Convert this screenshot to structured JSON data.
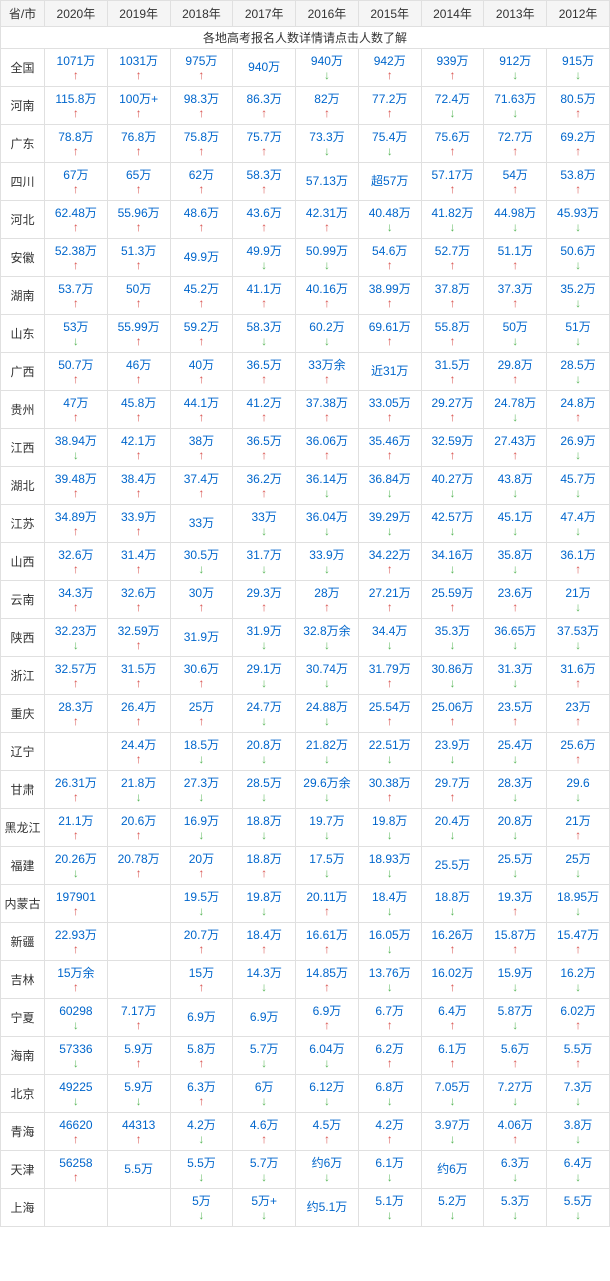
{
  "subtitle": "各地高考报名人数详情请点击人数了解",
  "years": [
    "2020年",
    "2019年",
    "2018年",
    "2017年",
    "2016年",
    "2015年",
    "2014年",
    "2013年",
    "2012年"
  ],
  "first_col": "省/市",
  "link_color": "#0066cc",
  "up_color": "#d9534f",
  "down_color": "#5cb85c",
  "border_color": "#e0e0e0",
  "header_bg": "#f5f5f5",
  "rows": [
    {
      "p": "全国",
      "c": [
        {
          "v": "1071万",
          "a": "u"
        },
        {
          "v": "1031万",
          "a": "u"
        },
        {
          "v": "975万",
          "a": "u"
        },
        {
          "v": "940万",
          "a": ""
        },
        {
          "v": "940万",
          "a": "d"
        },
        {
          "v": "942万",
          "a": "u"
        },
        {
          "v": "939万",
          "a": "u"
        },
        {
          "v": "912万",
          "a": "d"
        },
        {
          "v": "915万",
          "a": "d"
        }
      ]
    },
    {
      "p": "河南",
      "c": [
        {
          "v": "115.8万",
          "a": "u"
        },
        {
          "v": "100万+",
          "a": "u"
        },
        {
          "v": "98.3万",
          "a": "u"
        },
        {
          "v": "86.3万",
          "a": "u"
        },
        {
          "v": "82万",
          "a": "u"
        },
        {
          "v": "77.2万",
          "a": "u"
        },
        {
          "v": "72.4万",
          "a": "d"
        },
        {
          "v": "71.63万",
          "a": "d"
        },
        {
          "v": "80.5万",
          "a": "u"
        }
      ]
    },
    {
      "p": "广东",
      "c": [
        {
          "v": "78.8万",
          "a": "u"
        },
        {
          "v": "76.8万",
          "a": "u"
        },
        {
          "v": "75.8万",
          "a": "u"
        },
        {
          "v": "75.7万",
          "a": "u"
        },
        {
          "v": "73.3万",
          "a": "d"
        },
        {
          "v": "75.4万",
          "a": "d"
        },
        {
          "v": "75.6万",
          "a": "u"
        },
        {
          "v": "72.7万",
          "a": "u"
        },
        {
          "v": "69.2万",
          "a": "u"
        }
      ]
    },
    {
      "p": "四川",
      "c": [
        {
          "v": "67万",
          "a": "u"
        },
        {
          "v": "65万",
          "a": "u"
        },
        {
          "v": "62万",
          "a": "u"
        },
        {
          "v": "58.3万",
          "a": "u"
        },
        {
          "v": "57.13万",
          "a": ""
        },
        {
          "v": "超57万",
          "a": ""
        },
        {
          "v": "57.17万",
          "a": "u"
        },
        {
          "v": "54万",
          "a": "u"
        },
        {
          "v": "53.8万",
          "a": "u"
        }
      ]
    },
    {
      "p": "河北",
      "c": [
        {
          "v": "62.48万",
          "a": "u"
        },
        {
          "v": "55.96万",
          "a": "u"
        },
        {
          "v": "48.6万",
          "a": "u"
        },
        {
          "v": "43.6万",
          "a": "u"
        },
        {
          "v": "42.31万",
          "a": "u"
        },
        {
          "v": "40.48万",
          "a": "d"
        },
        {
          "v": "41.82万",
          "a": "d"
        },
        {
          "v": "44.98万",
          "a": "d"
        },
        {
          "v": "45.93万",
          "a": "d"
        }
      ]
    },
    {
      "p": "安徽",
      "c": [
        {
          "v": "52.38万",
          "a": "u"
        },
        {
          "v": "51.3万",
          "a": "u"
        },
        {
          "v": "49.9万",
          "a": ""
        },
        {
          "v": "49.9万",
          "a": "d"
        },
        {
          "v": "50.99万",
          "a": "d"
        },
        {
          "v": "54.6万",
          "a": "u"
        },
        {
          "v": "52.7万",
          "a": "u"
        },
        {
          "v": "51.1万",
          "a": "u"
        },
        {
          "v": "50.6万",
          "a": "d"
        }
      ]
    },
    {
      "p": "湖南",
      "c": [
        {
          "v": "53.7万",
          "a": "u"
        },
        {
          "v": "50万",
          "a": "u"
        },
        {
          "v": "45.2万",
          "a": "u"
        },
        {
          "v": "41.1万",
          "a": "u"
        },
        {
          "v": "40.16万",
          "a": "u"
        },
        {
          "v": "38.99万",
          "a": "u"
        },
        {
          "v": "37.8万",
          "a": "u"
        },
        {
          "v": "37.3万",
          "a": "u"
        },
        {
          "v": "35.2万",
          "a": "d"
        }
      ]
    },
    {
      "p": "山东",
      "c": [
        {
          "v": "53万",
          "a": "d"
        },
        {
          "v": "55.99万",
          "a": "u"
        },
        {
          "v": "59.2万",
          "a": "u"
        },
        {
          "v": "58.3万",
          "a": "d"
        },
        {
          "v": "60.2万",
          "a": "d"
        },
        {
          "v": "69.61万",
          "a": "u"
        },
        {
          "v": "55.8万",
          "a": "u"
        },
        {
          "v": "50万",
          "a": "d"
        },
        {
          "v": "51万",
          "a": "d"
        }
      ]
    },
    {
      "p": "广西",
      "c": [
        {
          "v": "50.7万",
          "a": "u"
        },
        {
          "v": "46万",
          "a": "u"
        },
        {
          "v": "40万",
          "a": "u"
        },
        {
          "v": "36.5万",
          "a": "u"
        },
        {
          "v": "33万余",
          "a": "u"
        },
        {
          "v": "近31万",
          "a": ""
        },
        {
          "v": "31.5万",
          "a": "u"
        },
        {
          "v": "29.8万",
          "a": "u"
        },
        {
          "v": "28.5万",
          "a": "d"
        }
      ]
    },
    {
      "p": "贵州",
      "c": [
        {
          "v": "47万",
          "a": "u"
        },
        {
          "v": "45.8万",
          "a": "u"
        },
        {
          "v": "44.1万",
          "a": "u"
        },
        {
          "v": "41.2万",
          "a": "u"
        },
        {
          "v": "37.38万",
          "a": "u"
        },
        {
          "v": "33.05万",
          "a": "u"
        },
        {
          "v": "29.27万",
          "a": "u"
        },
        {
          "v": "24.78万",
          "a": "d"
        },
        {
          "v": "24.8万",
          "a": "u"
        }
      ]
    },
    {
      "p": "江西",
      "c": [
        {
          "v": "38.94万",
          "a": "d"
        },
        {
          "v": "42.1万",
          "a": "u"
        },
        {
          "v": "38万",
          "a": "u"
        },
        {
          "v": "36.5万",
          "a": "u"
        },
        {
          "v": "36.06万",
          "a": "u"
        },
        {
          "v": "35.46万",
          "a": "u"
        },
        {
          "v": "32.59万",
          "a": "u"
        },
        {
          "v": "27.43万",
          "a": "u"
        },
        {
          "v": "26.9万",
          "a": "d"
        }
      ]
    },
    {
      "p": "湖北",
      "c": [
        {
          "v": "39.48万",
          "a": "u"
        },
        {
          "v": "38.4万",
          "a": "u"
        },
        {
          "v": "37.4万",
          "a": "u"
        },
        {
          "v": "36.2万",
          "a": "u"
        },
        {
          "v": "36.14万",
          "a": "d"
        },
        {
          "v": "36.84万",
          "a": "d"
        },
        {
          "v": "40.27万",
          "a": "d"
        },
        {
          "v": "43.8万",
          "a": "d"
        },
        {
          "v": "45.7万",
          "a": "d"
        }
      ]
    },
    {
      "p": "江苏",
      "c": [
        {
          "v": "34.89万",
          "a": "u"
        },
        {
          "v": "33.9万",
          "a": "u"
        },
        {
          "v": "33万",
          "a": ""
        },
        {
          "v": "33万",
          "a": "d"
        },
        {
          "v": "36.04万",
          "a": "d"
        },
        {
          "v": "39.29万",
          "a": "d"
        },
        {
          "v": "42.57万",
          "a": "d"
        },
        {
          "v": "45.1万",
          "a": "d"
        },
        {
          "v": "47.4万",
          "a": "d"
        }
      ]
    },
    {
      "p": "山西",
      "c": [
        {
          "v": "32.6万",
          "a": "u"
        },
        {
          "v": "31.4万",
          "a": "u"
        },
        {
          "v": "30.5万",
          "a": "d"
        },
        {
          "v": "31.7万",
          "a": "d"
        },
        {
          "v": "33.9万",
          "a": "d"
        },
        {
          "v": "34.22万",
          "a": "u"
        },
        {
          "v": "34.16万",
          "a": "d"
        },
        {
          "v": "35.8万",
          "a": "d"
        },
        {
          "v": "36.1万",
          "a": "u"
        }
      ]
    },
    {
      "p": "云南",
      "c": [
        {
          "v": "34.3万",
          "a": "u"
        },
        {
          "v": "32.6万",
          "a": "u"
        },
        {
          "v": "30万",
          "a": "u"
        },
        {
          "v": "29.3万",
          "a": "u"
        },
        {
          "v": "28万",
          "a": "u"
        },
        {
          "v": "27.21万",
          "a": "u"
        },
        {
          "v": "25.59万",
          "a": "u"
        },
        {
          "v": "23.6万",
          "a": "u"
        },
        {
          "v": "21万",
          "a": "d"
        }
      ]
    },
    {
      "p": "陕西",
      "c": [
        {
          "v": "32.23万",
          "a": "d"
        },
        {
          "v": "32.59万",
          "a": "u"
        },
        {
          "v": "31.9万",
          "a": ""
        },
        {
          "v": "31.9万",
          "a": "d"
        },
        {
          "v": "32.8万余",
          "a": "d"
        },
        {
          "v": "34.4万",
          "a": "d"
        },
        {
          "v": "35.3万",
          "a": "d"
        },
        {
          "v": "36.65万",
          "a": "d"
        },
        {
          "v": "37.53万",
          "a": "d"
        }
      ]
    },
    {
      "p": "浙江",
      "c": [
        {
          "v": "32.57万",
          "a": "u"
        },
        {
          "v": "31.5万",
          "a": "u"
        },
        {
          "v": "30.6万",
          "a": "u"
        },
        {
          "v": "29.1万",
          "a": "d"
        },
        {
          "v": "30.74万",
          "a": "d"
        },
        {
          "v": "31.79万",
          "a": "u"
        },
        {
          "v": "30.86万",
          "a": "d"
        },
        {
          "v": "31.3万",
          "a": "d"
        },
        {
          "v": "31.6万",
          "a": "u"
        }
      ]
    },
    {
      "p": "重庆",
      "c": [
        {
          "v": "28.3万",
          "a": "u"
        },
        {
          "v": "26.4万",
          "a": "u"
        },
        {
          "v": "25万",
          "a": "u"
        },
        {
          "v": "24.7万",
          "a": "d"
        },
        {
          "v": "24.88万",
          "a": "d"
        },
        {
          "v": "25.54万",
          "a": "u"
        },
        {
          "v": "25.06万",
          "a": "u"
        },
        {
          "v": "23.5万",
          "a": "u"
        },
        {
          "v": "23万",
          "a": "u"
        }
      ]
    },
    {
      "p": "辽宁",
      "c": [
        {
          "v": "",
          "a": ""
        },
        {
          "v": "24.4万",
          "a": "u"
        },
        {
          "v": "18.5万",
          "a": "d"
        },
        {
          "v": "20.8万",
          "a": "d"
        },
        {
          "v": "21.82万",
          "a": "d"
        },
        {
          "v": "22.51万",
          "a": "d"
        },
        {
          "v": "23.9万",
          "a": "d"
        },
        {
          "v": "25.4万",
          "a": "d"
        },
        {
          "v": "25.6万",
          "a": "u"
        }
      ]
    },
    {
      "p": "甘肃",
      "c": [
        {
          "v": "26.31万",
          "a": "u"
        },
        {
          "v": "21.8万",
          "a": "d"
        },
        {
          "v": "27.3万",
          "a": "d"
        },
        {
          "v": "28.5万",
          "a": "d"
        },
        {
          "v": "29.6万余",
          "a": "d"
        },
        {
          "v": "30.38万",
          "a": "u"
        },
        {
          "v": "29.7万",
          "a": "u"
        },
        {
          "v": "28.3万",
          "a": "d"
        },
        {
          "v": "29.6",
          "a": "d"
        }
      ]
    },
    {
      "p": "黑龙江",
      "c": [
        {
          "v": "21.1万",
          "a": "u"
        },
        {
          "v": "20.6万",
          "a": "u"
        },
        {
          "v": "16.9万",
          "a": "d"
        },
        {
          "v": "18.8万",
          "a": "d"
        },
        {
          "v": "19.7万",
          "a": "d"
        },
        {
          "v": "19.8万",
          "a": "d"
        },
        {
          "v": "20.4万",
          "a": "d"
        },
        {
          "v": "20.8万",
          "a": "d"
        },
        {
          "v": "21万",
          "a": "u"
        }
      ]
    },
    {
      "p": "福建",
      "c": [
        {
          "v": "20.26万",
          "a": "d"
        },
        {
          "v": "20.78万",
          "a": "u"
        },
        {
          "v": "20万",
          "a": "u"
        },
        {
          "v": "18.8万",
          "a": "u"
        },
        {
          "v": "17.5万",
          "a": "d"
        },
        {
          "v": "18.93万",
          "a": "d"
        },
        {
          "v": "25.5万",
          "a": ""
        },
        {
          "v": "25.5万",
          "a": "d"
        },
        {
          "v": "25万",
          "a": "d"
        }
      ]
    },
    {
      "p": "内蒙古",
      "c": [
        {
          "v": "197901",
          "a": "u"
        },
        {
          "v": "",
          "a": ""
        },
        {
          "v": "19.5万",
          "a": "d"
        },
        {
          "v": "19.8万",
          "a": "d"
        },
        {
          "v": "20.11万",
          "a": "u"
        },
        {
          "v": "18.4万",
          "a": "d"
        },
        {
          "v": "18.8万",
          "a": "d"
        },
        {
          "v": "19.3万",
          "a": "u"
        },
        {
          "v": "18.95万",
          "a": "d"
        }
      ]
    },
    {
      "p": "新疆",
      "c": [
        {
          "v": "22.93万",
          "a": "u"
        },
        {
          "v": "",
          "a": ""
        },
        {
          "v": "20.7万",
          "a": "u"
        },
        {
          "v": "18.4万",
          "a": "u"
        },
        {
          "v": "16.61万",
          "a": "u"
        },
        {
          "v": "16.05万",
          "a": "d"
        },
        {
          "v": "16.26万",
          "a": "u"
        },
        {
          "v": "15.87万",
          "a": "u"
        },
        {
          "v": "15.47万",
          "a": "u"
        }
      ]
    },
    {
      "p": "吉林",
      "c": [
        {
          "v": "15万余",
          "a": "u"
        },
        {
          "v": "",
          "a": ""
        },
        {
          "v": "15万",
          "a": "u"
        },
        {
          "v": "14.3万",
          "a": "d"
        },
        {
          "v": "14.85万",
          "a": "u"
        },
        {
          "v": "13.76万",
          "a": "d"
        },
        {
          "v": "16.02万",
          "a": "u"
        },
        {
          "v": "15.9万",
          "a": "d"
        },
        {
          "v": "16.2万",
          "a": "d"
        }
      ]
    },
    {
      "p": "宁夏",
      "c": [
        {
          "v": "60298",
          "a": "d"
        },
        {
          "v": "7.17万",
          "a": "u"
        },
        {
          "v": "6.9万",
          "a": ""
        },
        {
          "v": "6.9万",
          "a": ""
        },
        {
          "v": "6.9万",
          "a": "u"
        },
        {
          "v": "6.7万",
          "a": "u"
        },
        {
          "v": "6.4万",
          "a": "u"
        },
        {
          "v": "5.87万",
          "a": "d"
        },
        {
          "v": "6.02万",
          "a": "u"
        }
      ]
    },
    {
      "p": "海南",
      "c": [
        {
          "v": "57336",
          "a": "d"
        },
        {
          "v": "5.9万",
          "a": "u"
        },
        {
          "v": "5.8万",
          "a": "u"
        },
        {
          "v": "5.7万",
          "a": "d"
        },
        {
          "v": "6.04万",
          "a": "d"
        },
        {
          "v": "6.2万",
          "a": "u"
        },
        {
          "v": "6.1万",
          "a": "u"
        },
        {
          "v": "5.6万",
          "a": "u"
        },
        {
          "v": "5.5万",
          "a": "u"
        }
      ]
    },
    {
      "p": "北京",
      "c": [
        {
          "v": "49225",
          "a": "d"
        },
        {
          "v": "5.9万",
          "a": "d"
        },
        {
          "v": "6.3万",
          "a": "u"
        },
        {
          "v": "6万",
          "a": "d"
        },
        {
          "v": "6.12万",
          "a": "d"
        },
        {
          "v": "6.8万",
          "a": "d"
        },
        {
          "v": "7.05万",
          "a": "d"
        },
        {
          "v": "7.27万",
          "a": "d"
        },
        {
          "v": "7.3万",
          "a": "d"
        }
      ]
    },
    {
      "p": "青海",
      "c": [
        {
          "v": "46620",
          "a": "u"
        },
        {
          "v": "44313",
          "a": "u"
        },
        {
          "v": "4.2万",
          "a": "d"
        },
        {
          "v": "4.6万",
          "a": "u"
        },
        {
          "v": "4.5万",
          "a": "u"
        },
        {
          "v": "4.2万",
          "a": "u"
        },
        {
          "v": "3.97万",
          "a": "d"
        },
        {
          "v": "4.06万",
          "a": "u"
        },
        {
          "v": "3.8万",
          "a": "d"
        }
      ]
    },
    {
      "p": "天津",
      "c": [
        {
          "v": "56258",
          "a": "u"
        },
        {
          "v": "5.5万",
          "a": ""
        },
        {
          "v": "5.5万",
          "a": "d"
        },
        {
          "v": "5.7万",
          "a": "d"
        },
        {
          "v": "约6万",
          "a": "d"
        },
        {
          "v": "6.1万",
          "a": "d"
        },
        {
          "v": "约6万",
          "a": ""
        },
        {
          "v": "6.3万",
          "a": "d"
        },
        {
          "v": "6.4万",
          "a": "d"
        }
      ]
    },
    {
      "p": "上海",
      "c": [
        {
          "v": "",
          "a": ""
        },
        {
          "v": "",
          "a": ""
        },
        {
          "v": "5万",
          "a": "d"
        },
        {
          "v": "5万+",
          "a": "d"
        },
        {
          "v": "约5.1万",
          "a": ""
        },
        {
          "v": "5.1万",
          "a": "d"
        },
        {
          "v": "5.2万",
          "a": "d"
        },
        {
          "v": "5.3万",
          "a": "d"
        },
        {
          "v": "5.5万",
          "a": "d"
        }
      ]
    }
  ]
}
